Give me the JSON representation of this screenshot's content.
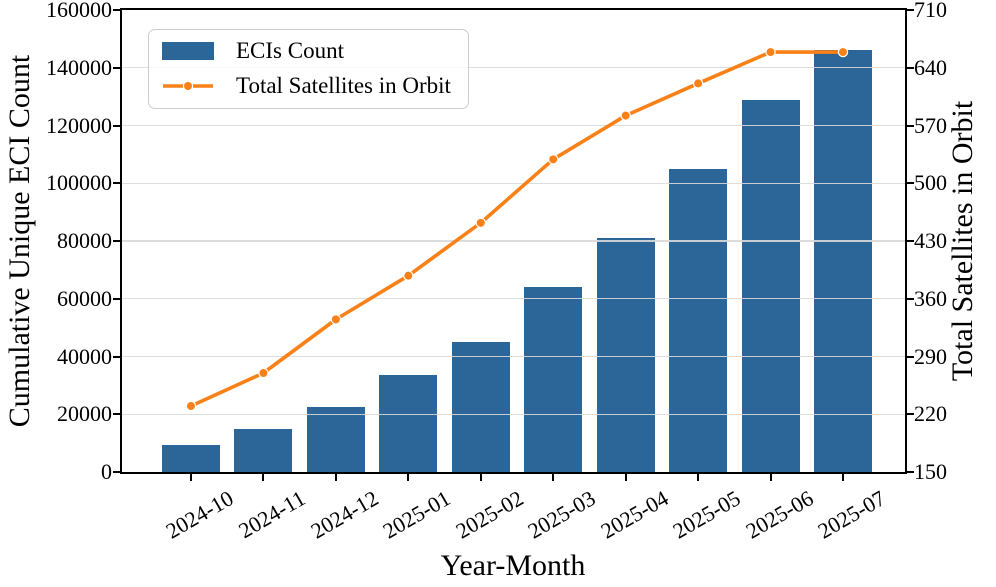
{
  "chart_data": {
    "type": "bar+line dual-axis",
    "categories": [
      "2024-10",
      "2024-11",
      "2024-12",
      "2025-01",
      "2025-02",
      "2025-03",
      "2025-04",
      "2025-05",
      "2025-06",
      "2025-07"
    ],
    "series": [
      {
        "name": "ECIs Count",
        "type": "bar",
        "axis": "left",
        "color": "#2c6698",
        "values": [
          9500,
          15000,
          22500,
          33500,
          45000,
          64000,
          81000,
          105000,
          129000,
          146000
        ]
      },
      {
        "name": "Total Satellites in Orbit",
        "type": "line",
        "axis": "right",
        "color": "#f98118",
        "marker": "circle",
        "marker_edge_color": "#ffffff",
        "values": [
          230,
          270,
          335,
          388,
          452,
          529,
          582,
          621,
          659,
          659
        ]
      }
    ],
    "x_axis": {
      "label": "Year-Month",
      "tick_rotation_deg": 30
    },
    "left_axis": {
      "label": "Cumulative Unique ECI Count",
      "min": 0,
      "max": 160000,
      "ticks": [
        0,
        20000,
        40000,
        60000,
        80000,
        100000,
        120000,
        140000,
        160000
      ]
    },
    "right_axis": {
      "label": "Total Satellites in Orbit",
      "min": 150,
      "max": 710,
      "ticks": [
        150,
        220,
        290,
        360,
        430,
        500,
        570,
        640,
        710
      ]
    },
    "grid": true,
    "grid_color": "#d9d9d9",
    "spine_color": "#000000",
    "legend": {
      "position": "upper-left",
      "entries": [
        "ECIs Count",
        "Total Satellites in Orbit"
      ]
    }
  }
}
